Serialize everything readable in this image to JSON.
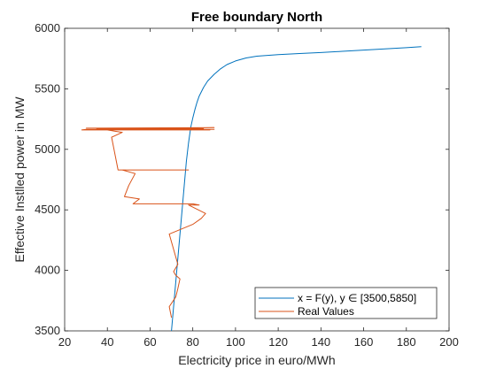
{
  "chart_data": {
    "type": "line",
    "title": "Free boundary North",
    "xlabel": "Electricity price in euro/MWh",
    "ylabel": "Effective Instlled power in MW",
    "xlim": [
      20,
      200
    ],
    "ylim": [
      3500,
      6000
    ],
    "xticks": [
      20,
      40,
      60,
      80,
      100,
      120,
      140,
      160,
      180,
      200
    ],
    "yticks": [
      3500,
      4000,
      4500,
      5000,
      5500,
      6000
    ],
    "grid": false,
    "legend_position": "bottom-right",
    "series": [
      {
        "name": "x = F(y), y ∈ [3500,5850]",
        "color": "#0072BD",
        "x": [
          70.0,
          71.0,
          72.0,
          73.0,
          74.0,
          75.0,
          76.0,
          77.0,
          78.0,
          79.0,
          80.0,
          81.0,
          82.0,
          83.0,
          85.0,
          87.0,
          90.0,
          93.0,
          96.0,
          100.0,
          105.0,
          110.0,
          120.0,
          130.0,
          140.0,
          150.0,
          160.0,
          170.0,
          180.0,
          187.0
        ],
        "y": [
          3500,
          3700,
          3900,
          4100,
          4300,
          4500,
          4700,
          4900,
          5050,
          5180,
          5260,
          5330,
          5390,
          5440,
          5510,
          5565,
          5620,
          5665,
          5700,
          5730,
          5755,
          5770,
          5783,
          5792,
          5800,
          5810,
          5820,
          5830,
          5840,
          5848
        ]
      },
      {
        "name": "Real Values",
        "color": "#D95319",
        "x": [
          70,
          69,
          72,
          73,
          74,
          72,
          71,
          73,
          69,
          80,
          84,
          86,
          78,
          83,
          80,
          75,
          52,
          55,
          48,
          50,
          53,
          47,
          49,
          45,
          78,
          45,
          42,
          47,
          40,
          88,
          28,
          30,
          90,
          35,
          85,
          38,
          82,
          40,
          80,
          45,
          70,
          90,
          30
        ],
        "y": [
          3610,
          3700,
          3780,
          3850,
          3930,
          3960,
          3990,
          4050,
          4300,
          4380,
          4430,
          4470,
          4540,
          4540,
          4550,
          4550,
          4550,
          4590,
          4610,
          4700,
          4800,
          4830,
          4830,
          4830,
          4830,
          4830,
          5100,
          5140,
          5160,
          5160,
          5160,
          5165,
          5165,
          5170,
          5170,
          5170,
          5170,
          5175,
          5175,
          5175,
          5175,
          5180,
          5175
        ]
      }
    ]
  }
}
